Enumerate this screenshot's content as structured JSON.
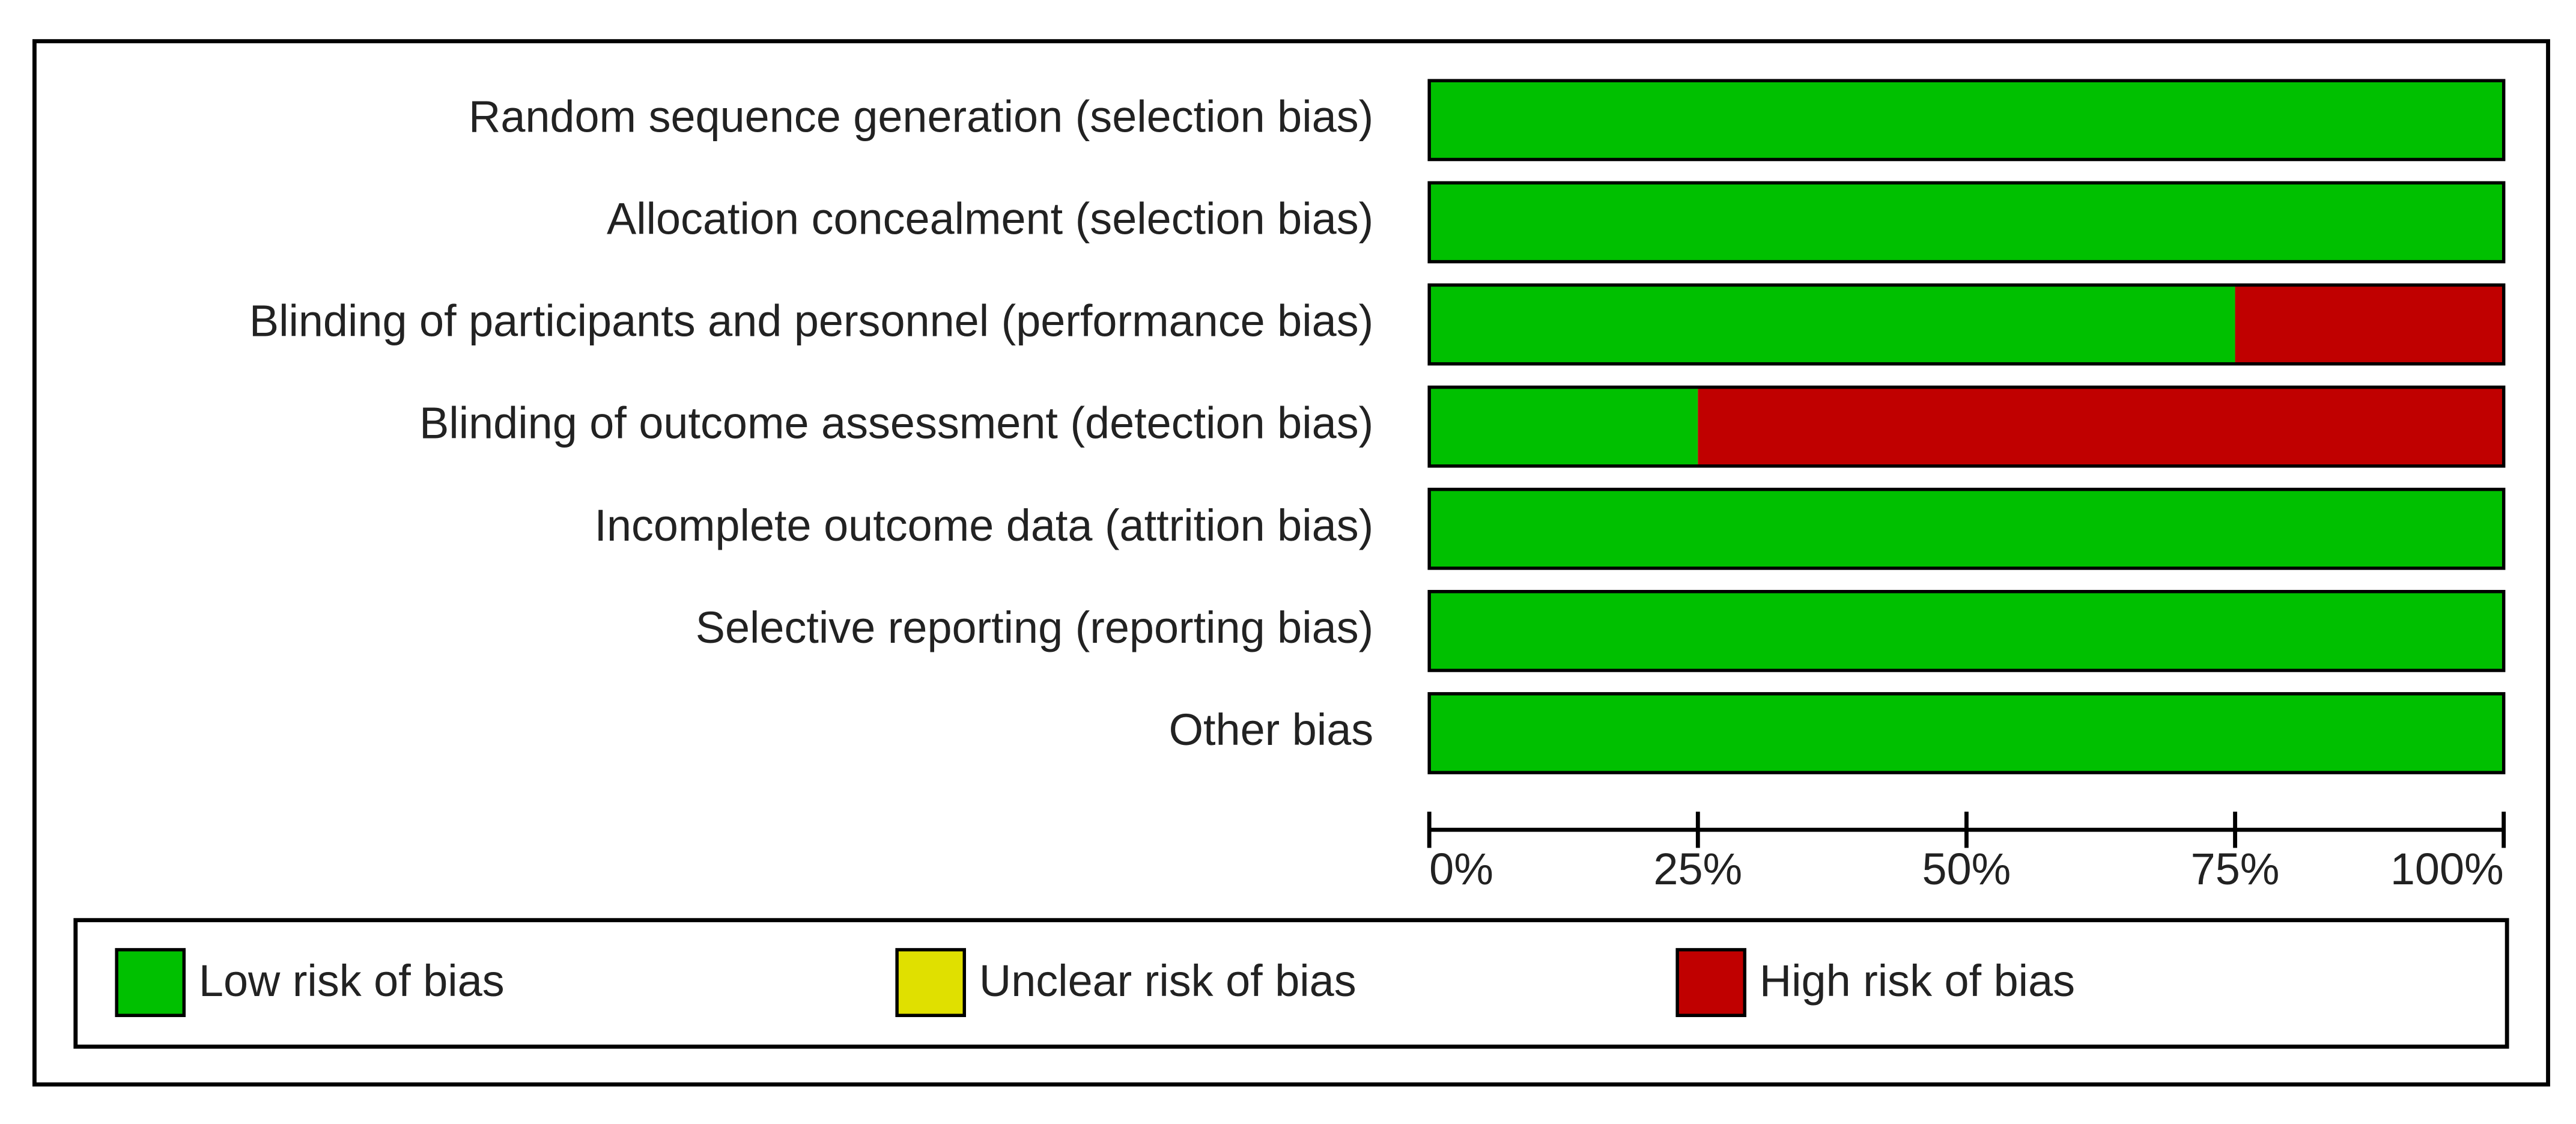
{
  "chart_data": {
    "type": "stacked-bar-horizontal",
    "categories": [
      "Random sequence generation (selection bias)",
      "Allocation concealment (selection bias)",
      "Blinding of participants and personnel (performance bias)",
      "Blinding of outcome assessment (detection bias)",
      "Incomplete outcome data (attrition bias)",
      "Selective reporting (reporting bias)",
      "Other bias"
    ],
    "series": [
      {
        "name": "Low risk of bias",
        "color": "#00c000",
        "values": [
          100,
          100,
          75,
          25,
          100,
          100,
          100
        ]
      },
      {
        "name": "Unclear risk of bias",
        "color": "#e0e000",
        "values": [
          0,
          0,
          0,
          0,
          0,
          0,
          0
        ]
      },
      {
        "name": "High risk of bias",
        "color": "#c00000",
        "values": [
          0,
          0,
          25,
          75,
          0,
          0,
          0
        ]
      }
    ],
    "xlim": [
      0,
      100
    ],
    "xticks": [
      {
        "value": 0,
        "label": "0%"
      },
      {
        "value": 25,
        "label": "25%"
      },
      {
        "value": 50,
        "label": "50%"
      },
      {
        "value": 75,
        "label": "75%"
      },
      {
        "value": 100,
        "label": "100%"
      }
    ],
    "legend": "bottom"
  }
}
